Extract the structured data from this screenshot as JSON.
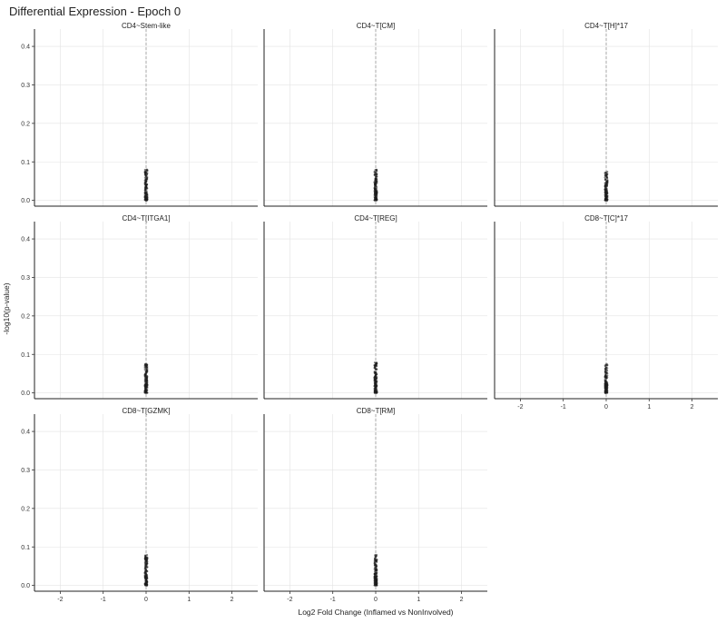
{
  "chart": {
    "title": "Differential Expression - Epoch 0",
    "xlabel": "Log2 Fold Change (Inflamed vs NonInvolved)",
    "ylabel": "-log10(p-value)"
  },
  "chart_data": {
    "type": "scatter",
    "title": "Differential Expression - Epoch 0",
    "xlabel": "Log2 Fold Change (Inflamed vs NonInvolved)",
    "ylabel": "-log10(p-value)",
    "xlim": [
      -2.6,
      2.6
    ],
    "ylim": [
      -0.015,
      0.445
    ],
    "x_ticks": [
      -2,
      -1,
      0,
      1,
      2
    ],
    "y_ticks": [
      0.0,
      0.1,
      0.2,
      0.3,
      0.4
    ],
    "x_tick_labels": [
      "-2",
      "-1",
      "0",
      "1",
      "2"
    ],
    "y_tick_labels": [
      "0.0",
      "0.1",
      "0.2",
      "0.3",
      "0.4"
    ],
    "vline_x": 0,
    "grid": true,
    "facets": [
      {
        "label": "CD4~Stem-like",
        "x_range": [
          -0.03,
          0.03
        ],
        "y_range": [
          0.0,
          0.08
        ]
      },
      {
        "label": "CD4~T[CM]",
        "x_range": [
          -0.03,
          0.03
        ],
        "y_range": [
          0.0,
          0.08
        ]
      },
      {
        "label": "CD4~T[H]*17",
        "x_range": [
          -0.03,
          0.03
        ],
        "y_range": [
          0.0,
          0.075
        ]
      },
      {
        "label": "CD4~T[ITGA1]",
        "x_range": [
          -0.03,
          0.03
        ],
        "y_range": [
          0.0,
          0.075
        ]
      },
      {
        "label": "CD4~T[REG]",
        "x_range": [
          -0.03,
          0.03
        ],
        "y_range": [
          0.0,
          0.08
        ]
      },
      {
        "label": "CD8~T[C]*17",
        "x_range": [
          -0.03,
          0.03
        ],
        "y_range": [
          0.0,
          0.075
        ]
      },
      {
        "label": "CD8~T[GZMK]",
        "x_range": [
          -0.03,
          0.03
        ],
        "y_range": [
          0.0,
          0.08
        ]
      },
      {
        "label": "CD8~T[RM]",
        "x_range": [
          -0.03,
          0.03
        ],
        "y_range": [
          0.0,
          0.08
        ]
      }
    ]
  }
}
